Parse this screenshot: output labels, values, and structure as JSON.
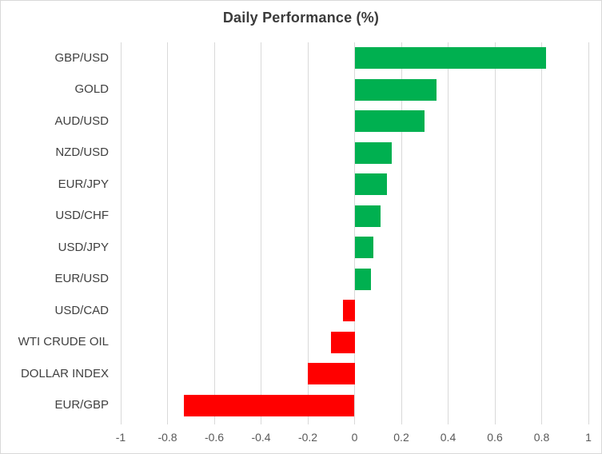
{
  "chart_data": {
    "type": "bar",
    "orientation": "horizontal",
    "title": "Daily Performance (%)",
    "categories": [
      "GBP/USD",
      "GOLD",
      "AUD/USD",
      "NZD/USD",
      "EUR/JPY",
      "USD/CHF",
      "USD/JPY",
      "EUR/USD",
      "USD/CAD",
      "WTI CRUDE OIL",
      "DOLLAR INDEX",
      "EUR/GBP"
    ],
    "values": [
      0.82,
      0.35,
      0.3,
      0.16,
      0.14,
      0.11,
      0.08,
      0.07,
      -0.05,
      -0.1,
      -0.2,
      -0.73
    ],
    "xlabel": "",
    "ylabel": "",
    "xlim": [
      -1,
      1
    ],
    "xticks": [
      -1,
      -0.8,
      -0.6,
      -0.4,
      -0.2,
      0,
      0.2,
      0.4,
      0.6,
      0.8,
      1
    ],
    "xtick_labels": [
      "-1",
      "-0.8",
      "-0.6",
      "-0.4",
      "-0.2",
      "0",
      "0.2",
      "0.4",
      "0.6",
      "0.8",
      "1"
    ],
    "grid": true,
    "legend": false,
    "colors": {
      "positive": "#00B050",
      "negative": "#FF0000",
      "gridline": "#D9D9D9",
      "title_text": "#3B3B3B",
      "category_text": "#404040",
      "tick_text": "#595959",
      "border": "#D9D9D9",
      "background": "#FFFFFF"
    }
  }
}
